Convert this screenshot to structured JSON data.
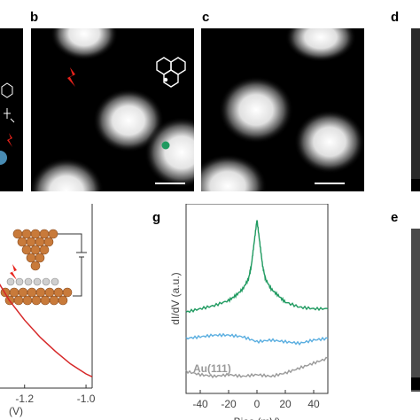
{
  "figure": {
    "panels": {
      "b": {
        "letter": "b"
      },
      "c": {
        "letter": "c"
      },
      "d": {
        "letter": "d"
      },
      "e": {
        "letter": "e"
      },
      "g": {
        "letter": "g"
      }
    },
    "colors": {
      "red_curve": "#d62728",
      "green_curve": "#1f9a60",
      "blue_curve": "#5aaee0",
      "gray_curve": "#999999",
      "marker_red": "#e8221b",
      "marker_green": "#1f9a60",
      "marker_blue": "#5aaee0"
    }
  },
  "chart_data": [
    {
      "type": "line",
      "panel": "left",
      "x_ticks": [
        "-1.2",
        "-1.0"
      ],
      "xlabel": "(V)",
      "series": [
        {
          "color": "#d62728",
          "x": [
            -1.3,
            -1.25,
            -1.2,
            -1.15,
            -1.1,
            -1.05,
            -1.0,
            -0.98
          ],
          "y": [
            0.8,
            0.62,
            0.48,
            0.36,
            0.26,
            0.17,
            0.1,
            0.08
          ]
        }
      ]
    },
    {
      "type": "line",
      "panel": "g",
      "xlabel": "Bias (mV)",
      "ylabel": "dI/dV (a.u.)",
      "x_ticks": [
        "-40",
        "-20",
        "0",
        "20",
        "40"
      ],
      "xlim": [
        -50,
        50
      ],
      "series_label": "Au(111)",
      "series": [
        {
          "color": "#1f9a60",
          "x": [
            -50,
            -40,
            -30,
            -20,
            -15,
            -10,
            -6,
            -4,
            -2,
            0,
            2,
            4,
            6,
            10,
            15,
            20,
            30,
            40,
            50
          ],
          "y": [
            0.44,
            0.46,
            0.48,
            0.51,
            0.54,
            0.58,
            0.64,
            0.72,
            0.86,
            1.0,
            0.86,
            0.72,
            0.64,
            0.58,
            0.54,
            0.5,
            0.47,
            0.46,
            0.46
          ]
        },
        {
          "color": "#5aaee0",
          "x": [
            -50,
            -40,
            -30,
            -20,
            -10,
            0,
            10,
            20,
            30,
            40,
            50
          ],
          "y": [
            0.28,
            0.29,
            0.3,
            0.3,
            0.29,
            0.26,
            0.27,
            0.26,
            0.25,
            0.27,
            0.28
          ]
        },
        {
          "color": "#999999",
          "x": [
            -50,
            -40,
            -30,
            -20,
            -10,
            0,
            10,
            20,
            30,
            40,
            50
          ],
          "y": [
            0.08,
            0.06,
            0.05,
            0.06,
            0.05,
            0.06,
            0.05,
            0.07,
            0.1,
            0.13,
            0.16
          ]
        }
      ]
    }
  ]
}
